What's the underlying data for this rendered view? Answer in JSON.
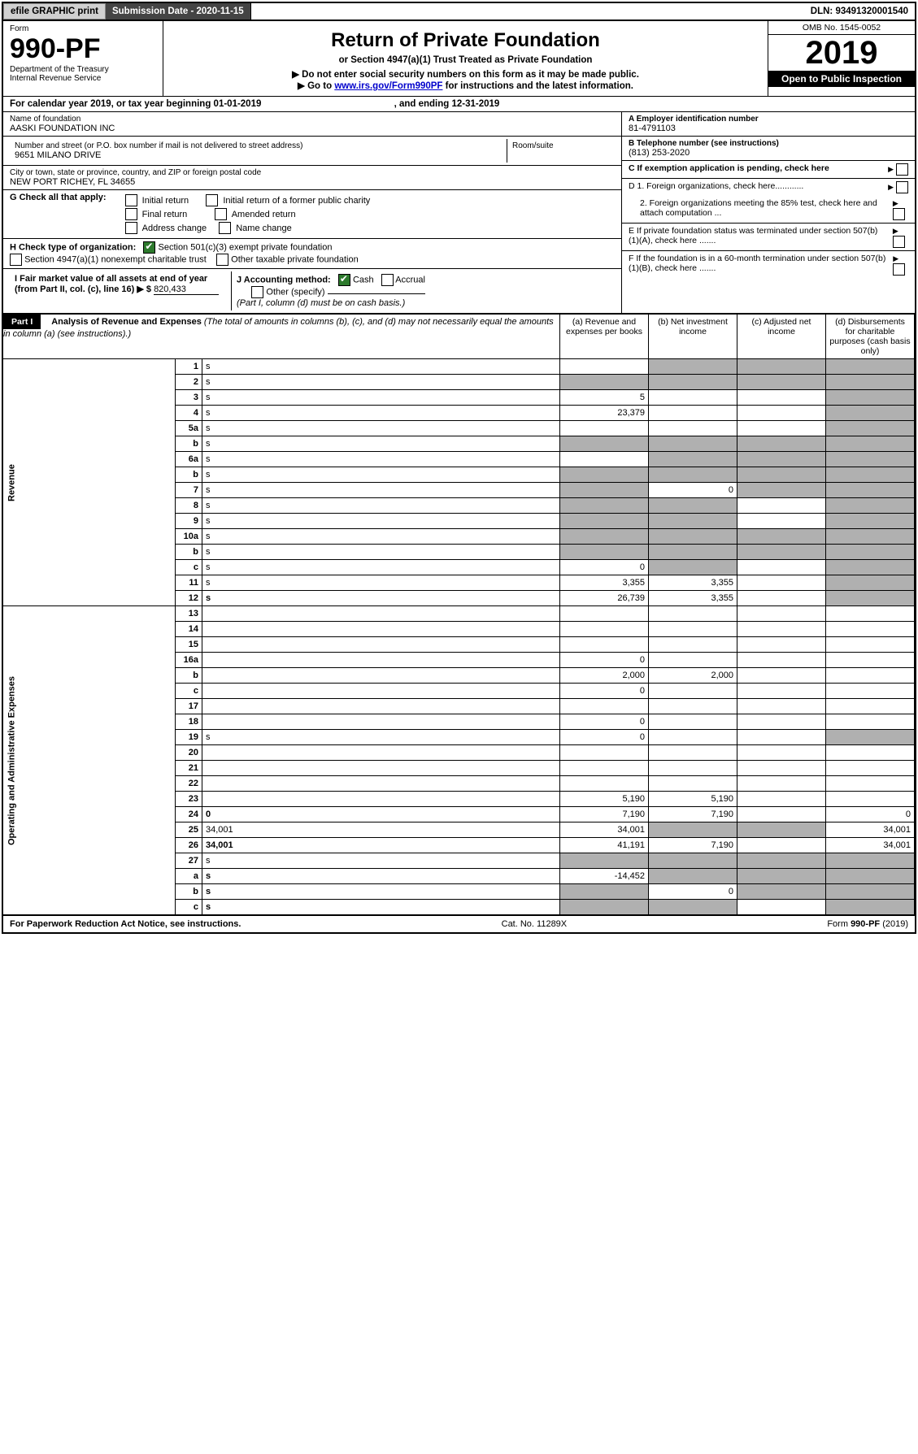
{
  "topbar": {
    "efile": "efile GRAPHIC print",
    "sub_label": "Submission Date - 2020-11-15",
    "dln": "DLN: 93491320001540"
  },
  "header": {
    "form_word": "Form",
    "form_no": "990-PF",
    "dept": "Department of the Treasury",
    "irs": "Internal Revenue Service",
    "title": "Return of Private Foundation",
    "subtitle": "or Section 4947(a)(1) Trust Treated as Private Foundation",
    "note1": "▶ Do not enter social security numbers on this form as it may be made public.",
    "note2_pre": "▶ Go to ",
    "note2_link": "www.irs.gov/Form990PF",
    "note2_post": " for instructions and the latest information.",
    "omb": "OMB No. 1545-0052",
    "year": "2019",
    "open": "Open to Public Inspection"
  },
  "calendar": {
    "pre": "For calendar year 2019, or tax year beginning ",
    "begin": "01-01-2019",
    "mid": " , and ending ",
    "end": "12-31-2019"
  },
  "left": {
    "name_label": "Name of foundation",
    "name": "AASKI FOUNDATION INC",
    "addr_label": "Number and street (or P.O. box number if mail is not delivered to street address)",
    "room_label": "Room/suite",
    "addr": "9651 MILANO DRIVE",
    "city_label": "City or town, state or province, country, and ZIP or foreign postal code",
    "city": "NEW PORT RICHEY, FL  34655",
    "g_label": "G Check all that apply:",
    "g_opts": [
      "Initial return",
      "Initial return of a former public charity",
      "Final return",
      "Amended return",
      "Address change",
      "Name change"
    ],
    "h_label": "H Check type of organization:",
    "h_opt1": "Section 501(c)(3) exempt private foundation",
    "h_opt2": "Section 4947(a)(1) nonexempt charitable trust",
    "h_opt3": "Other taxable private foundation",
    "i_label": "I Fair market value of all assets at end of year (from Part II, col. (c), line 16) ▶ $",
    "i_value": "820,433",
    "j_label": "J Accounting method:",
    "j_cash": "Cash",
    "j_accrual": "Accrual",
    "j_other": "Other (specify)",
    "j_note": "(Part I, column (d) must be on cash basis.)"
  },
  "right": {
    "a_label": "A Employer identification number",
    "a_val": "81-4791103",
    "b_label": "B Telephone number (see instructions)",
    "b_val": "(813) 253-2020",
    "c_label": "C If exemption application is pending, check here",
    "d1": "D 1. Foreign organizations, check here............",
    "d2": "2. Foreign organizations meeting the 85% test, check here and attach computation ...",
    "e": "E  If private foundation status was terminated under section 507(b)(1)(A), check here .......",
    "f": "F  If the foundation is in a 60-month termination under section 507(b)(1)(B), check here ......."
  },
  "part1": {
    "tag": "Part I",
    "title": "Analysis of Revenue and Expenses",
    "note": " (The total of amounts in columns (b), (c), and (d) may not necessarily equal the amounts in column (a) (see instructions).)",
    "cols": {
      "a": "(a)   Revenue and expenses per books",
      "b": "(b)  Net investment income",
      "c": "(c)  Adjusted net income",
      "d": "(d)  Disbursements for charitable purposes (cash basis only)"
    }
  },
  "sections": {
    "revenue": "Revenue",
    "expenses": "Operating and Administrative Expenses"
  },
  "rows": [
    {
      "n": "1",
      "d": "s",
      "a": "",
      "b": "s",
      "c": "s"
    },
    {
      "n": "2",
      "d": "s",
      "a": "s",
      "b": "s",
      "c": "s",
      "bold_not": true
    },
    {
      "n": "3",
      "d": "s",
      "a": "5",
      "b": "",
      "c": ""
    },
    {
      "n": "4",
      "d": "s",
      "a": "23,379",
      "b": "",
      "c": ""
    },
    {
      "n": "5a",
      "d": "s",
      "a": "",
      "b": "",
      "c": ""
    },
    {
      "n": "b",
      "d": "s",
      "a": "s",
      "b": "s",
      "c": "s"
    },
    {
      "n": "6a",
      "d": "s",
      "a": "",
      "b": "s",
      "c": "s"
    },
    {
      "n": "b",
      "d": "s",
      "a": "s",
      "b": "s",
      "c": "s"
    },
    {
      "n": "7",
      "d": "s",
      "a": "s",
      "b": "0",
      "c": "s"
    },
    {
      "n": "8",
      "d": "s",
      "a": "s",
      "b": "s",
      "c": ""
    },
    {
      "n": "9",
      "d": "s",
      "a": "s",
      "b": "s",
      "c": ""
    },
    {
      "n": "10a",
      "d": "s",
      "a": "s",
      "b": "s",
      "c": "s"
    },
    {
      "n": "b",
      "d": "s",
      "a": "s",
      "b": "s",
      "c": "s"
    },
    {
      "n": "c",
      "d": "s",
      "a": "0",
      "b": "s",
      "c": ""
    },
    {
      "n": "11",
      "d": "s",
      "a": "3,355",
      "b": "3,355",
      "c": ""
    },
    {
      "n": "12",
      "d": "s",
      "a": "26,739",
      "b": "3,355",
      "c": "",
      "bold": true
    },
    {
      "n": "13",
      "d": "",
      "a": "",
      "b": "",
      "c": "",
      "sec": "exp"
    },
    {
      "n": "14",
      "d": "",
      "a": "",
      "b": "",
      "c": ""
    },
    {
      "n": "15",
      "d": "",
      "a": "",
      "b": "",
      "c": ""
    },
    {
      "n": "16a",
      "d": "",
      "a": "0",
      "b": "",
      "c": ""
    },
    {
      "n": "b",
      "d": "",
      "a": "2,000",
      "b": "2,000",
      "c": ""
    },
    {
      "n": "c",
      "d": "",
      "a": "0",
      "b": "",
      "c": ""
    },
    {
      "n": "17",
      "d": "",
      "a": "",
      "b": "",
      "c": ""
    },
    {
      "n": "18",
      "d": "",
      "a": "0",
      "b": "",
      "c": ""
    },
    {
      "n": "19",
      "d": "s",
      "a": "0",
      "b": "",
      "c": ""
    },
    {
      "n": "20",
      "d": "",
      "a": "",
      "b": "",
      "c": ""
    },
    {
      "n": "21",
      "d": "",
      "a": "",
      "b": "",
      "c": ""
    },
    {
      "n": "22",
      "d": "",
      "a": "",
      "b": "",
      "c": ""
    },
    {
      "n": "23",
      "d": "",
      "a": "5,190",
      "b": "5,190",
      "c": ""
    },
    {
      "n": "24",
      "d": "0",
      "a": "7,190",
      "b": "7,190",
      "c": "",
      "bold": true
    },
    {
      "n": "25",
      "d": "34,001",
      "a": "34,001",
      "b": "s",
      "c": "s"
    },
    {
      "n": "26",
      "d": "34,001",
      "a": "41,191",
      "b": "7,190",
      "c": "",
      "bold": true
    },
    {
      "n": "27",
      "d": "s",
      "a": "s",
      "b": "s",
      "c": "s"
    },
    {
      "n": "a",
      "d": "s",
      "a": "-14,452",
      "b": "s",
      "c": "s",
      "bold": true
    },
    {
      "n": "b",
      "d": "s",
      "a": "s",
      "b": "0",
      "c": "s",
      "bold": true
    },
    {
      "n": "c",
      "d": "s",
      "a": "s",
      "b": "s",
      "c": "",
      "bold": true
    }
  ],
  "footer": {
    "left": "For Paperwork Reduction Act Notice, see instructions.",
    "mid": "Cat. No. 11289X",
    "right": "Form 990-PF (2019)"
  }
}
